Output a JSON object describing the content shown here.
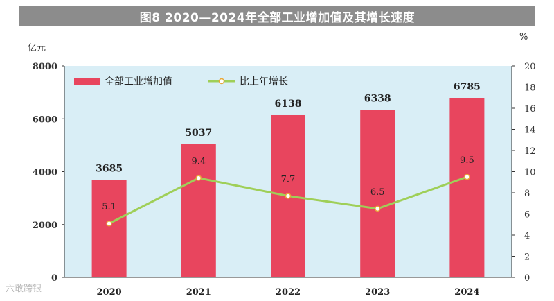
{
  "title": "图8  2020—2024年全部工业增加值及其增长速度",
  "watermark": "六敢跨银",
  "chart_data": {
    "type": "bar",
    "categories": [
      "2020",
      "2021",
      "2022",
      "2023",
      "2024"
    ],
    "series": [
      {
        "name": "全部工业增加值",
        "type": "bar",
        "axis": "left",
        "values": [
          3685,
          5037,
          6138,
          6338,
          6785
        ],
        "color": "#e8455e"
      },
      {
        "name": "比上年增长",
        "type": "line",
        "axis": "right",
        "values": [
          5.1,
          9.4,
          7.7,
          6.5,
          9.5
        ],
        "color": "#9fcf58"
      }
    ],
    "y_left": {
      "unit": "亿元",
      "range": [
        0,
        8000
      ],
      "ticks": [
        "0",
        "2000",
        "4000",
        "6000",
        "8000"
      ]
    },
    "y_right": {
      "unit": "%",
      "range": [
        0,
        20
      ],
      "ticks": [
        "0",
        "2",
        "4",
        "6",
        "8",
        "10",
        "12",
        "14",
        "16",
        "18",
        "20"
      ]
    },
    "bar_labels": [
      "3685",
      "5037",
      "6138",
      "6338",
      "6785"
    ],
    "line_labels": [
      "5.1",
      "9.4",
      "7.7",
      "6.5",
      "9.5"
    ],
    "legend_position": "top-left",
    "plot_background": "#d9eef6",
    "grid": false
  }
}
